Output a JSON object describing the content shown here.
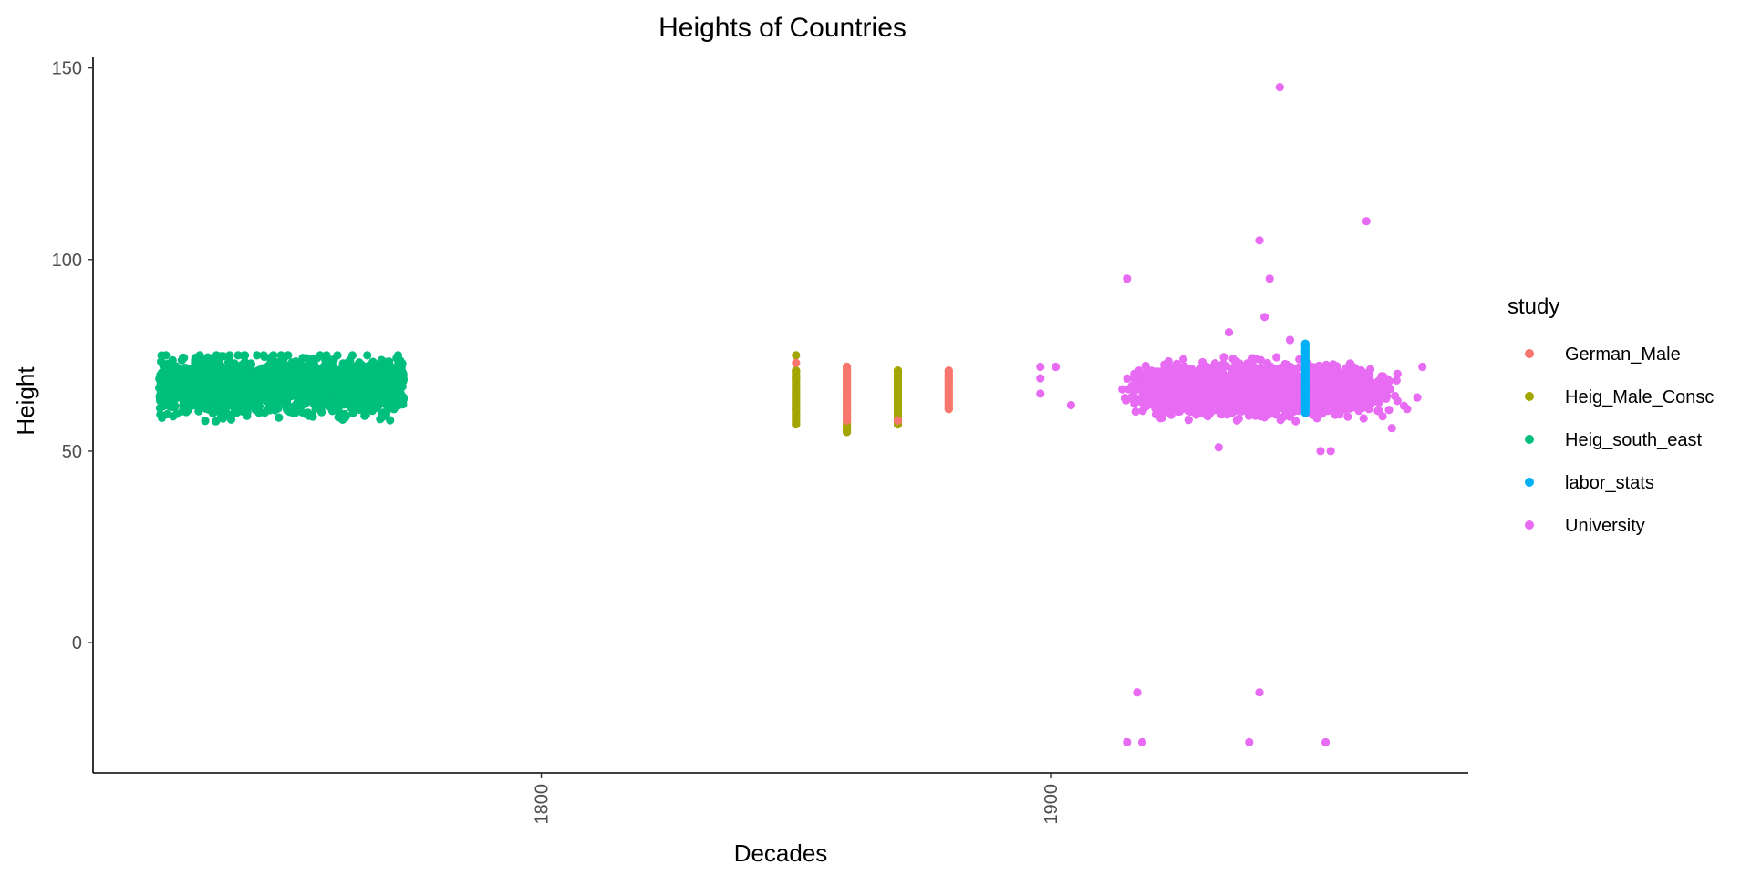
{
  "chart_data": {
    "type": "scatter",
    "title": "Heights of Countries",
    "xlabel": "Decades",
    "ylabel": "Height",
    "xlim": [
      1712,
      1982
    ],
    "ylim": [
      -34,
      153
    ],
    "x_ticks": [
      1800,
      1900
    ],
    "y_ticks": [
      0,
      50,
      100,
      150
    ],
    "x_tick_labels": [
      "1800",
      "1900"
    ],
    "y_tick_labels": [
      "0",
      "50",
      "100",
      "150"
    ],
    "grid": false,
    "legend": {
      "title": "study",
      "position": "right"
    },
    "series": [
      {
        "name": "German_Male",
        "color": "#F8766D",
        "points": [
          [
            1880,
            61
          ],
          [
            1880,
            62
          ],
          [
            1880,
            63
          ],
          [
            1880,
            64
          ],
          [
            1880,
            65
          ],
          [
            1880,
            66
          ],
          [
            1880,
            67
          ],
          [
            1880,
            68
          ],
          [
            1880,
            69
          ],
          [
            1880,
            70
          ],
          [
            1880,
            71
          ],
          [
            1850,
            73
          ],
          [
            1860,
            72
          ],
          [
            1860,
            58
          ],
          [
            1870,
            58
          ]
        ]
      },
      {
        "name": "Heig_Male_Consc",
        "color": "#A3A500",
        "points": [
          [
            1850,
            57
          ],
          [
            1850,
            59
          ],
          [
            1850,
            61
          ],
          [
            1850,
            63
          ],
          [
            1850,
            65
          ],
          [
            1850,
            67
          ],
          [
            1850,
            69
          ],
          [
            1850,
            71
          ],
          [
            1850,
            75
          ],
          [
            1860,
            55
          ],
          [
            1860,
            59
          ],
          [
            1860,
            61
          ],
          [
            1860,
            63
          ],
          [
            1860,
            65
          ],
          [
            1860,
            67
          ],
          [
            1860,
            69
          ],
          [
            1860,
            71
          ],
          [
            1870,
            57
          ],
          [
            1870,
            59
          ],
          [
            1870,
            61
          ],
          [
            1870,
            63
          ],
          [
            1870,
            65
          ],
          [
            1870,
            67
          ],
          [
            1870,
            69
          ],
          [
            1870,
            71
          ]
        ]
      },
      {
        "name": "Heig_south_east",
        "color": "#00BF7D",
        "cluster": {
          "x_range": [
            1725,
            1773
          ],
          "y_center": 67,
          "y_spread": 7,
          "y_min": 57.5,
          "y_max": 75
        }
      },
      {
        "name": "labor_stats",
        "color": "#00B0F6",
        "points": [
          [
            1950,
            60
          ],
          [
            1950,
            62
          ],
          [
            1950,
            64
          ],
          [
            1950,
            66
          ],
          [
            1950,
            68
          ],
          [
            1950,
            70
          ],
          [
            1950,
            72
          ],
          [
            1950,
            74
          ],
          [
            1950,
            76
          ],
          [
            1950,
            78
          ]
        ]
      },
      {
        "name": "University",
        "color": "#E76BF3",
        "cluster": {
          "x_range": [
            1912,
            1970
          ],
          "y_center": 66,
          "y_spread": 6,
          "y_min": 52,
          "y_max": 80
        },
        "points": [
          [
            1945,
            145
          ],
          [
            1962,
            110
          ],
          [
            1941,
            105
          ],
          [
            1943,
            95
          ],
          [
            1915,
            95
          ],
          [
            1942,
            85
          ],
          [
            1935,
            81
          ],
          [
            1947,
            79
          ],
          [
            1917,
            -13
          ],
          [
            1941,
            -13
          ],
          [
            1915,
            -26
          ],
          [
            1918,
            -26
          ],
          [
            1939,
            -26
          ],
          [
            1954,
            -26
          ],
          [
            1898,
            72
          ],
          [
            1898,
            69
          ],
          [
            1898,
            65
          ],
          [
            1901,
            72
          ],
          [
            1904,
            62
          ],
          [
            1933,
            51
          ],
          [
            1953,
            50
          ],
          [
            1955,
            50
          ],
          [
            1967,
            56
          ],
          [
            1970,
            61
          ],
          [
            1972,
            64
          ],
          [
            1973,
            72
          ]
        ]
      }
    ]
  }
}
